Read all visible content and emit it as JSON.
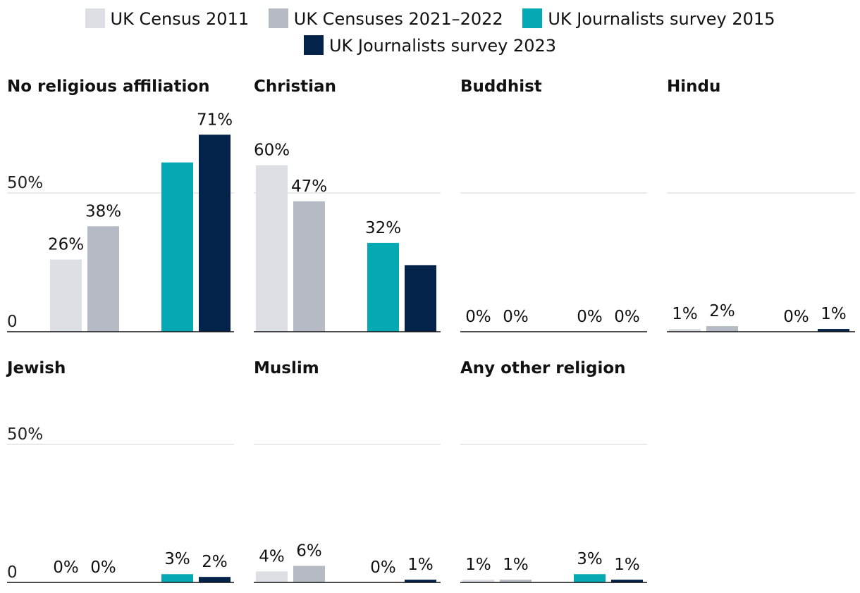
{
  "chart_data": {
    "type": "bar",
    "layout": "small-multiples",
    "title": "",
    "ylabel": "",
    "ylim": [
      0,
      75
    ],
    "yticks": [
      {
        "value": 0,
        "label": "0"
      },
      {
        "value": 50,
        "label": "50%"
      }
    ],
    "series": [
      {
        "name": "UK Census 2011",
        "color": "#dce0e5"
      },
      {
        "name": "UK Censuses 2021–2022",
        "color": "#b6bac4"
      },
      {
        "name": "UK Journalists survey 2015",
        "color": "#04a9b3"
      },
      {
        "name": "UK Journalists survey 2023",
        "color": "#03234a"
      }
    ],
    "panels": [
      {
        "title": "No religious affiliation",
        "values": [
          26,
          38,
          61,
          71
        ],
        "labels": [
          "26%",
          "38%",
          "",
          "71%"
        ]
      },
      {
        "title": "Christian",
        "values": [
          60,
          47,
          32,
          24
        ],
        "labels": [
          "60%",
          "47%",
          "32%",
          ""
        ]
      },
      {
        "title": "Buddhist",
        "values": [
          0,
          0,
          0,
          0
        ],
        "labels": [
          "0%",
          "0%",
          "0%",
          "0%"
        ]
      },
      {
        "title": "Hindu",
        "values": [
          1,
          2,
          0,
          1
        ],
        "labels": [
          "1%",
          "2%",
          "0%",
          "1%"
        ]
      },
      {
        "title": "Jewish",
        "values": [
          0,
          0,
          3,
          2
        ],
        "labels": [
          "0%",
          "0%",
          "3%",
          "2%"
        ]
      },
      {
        "title": "Muslim",
        "values": [
          4,
          6,
          0,
          1
        ],
        "labels": [
          "4%",
          "6%",
          "0%",
          "1%"
        ]
      },
      {
        "title": "Any other religion",
        "values": [
          1,
          1,
          3,
          1
        ],
        "labels": [
          "1%",
          "1%",
          "3%",
          "1%"
        ]
      }
    ]
  }
}
